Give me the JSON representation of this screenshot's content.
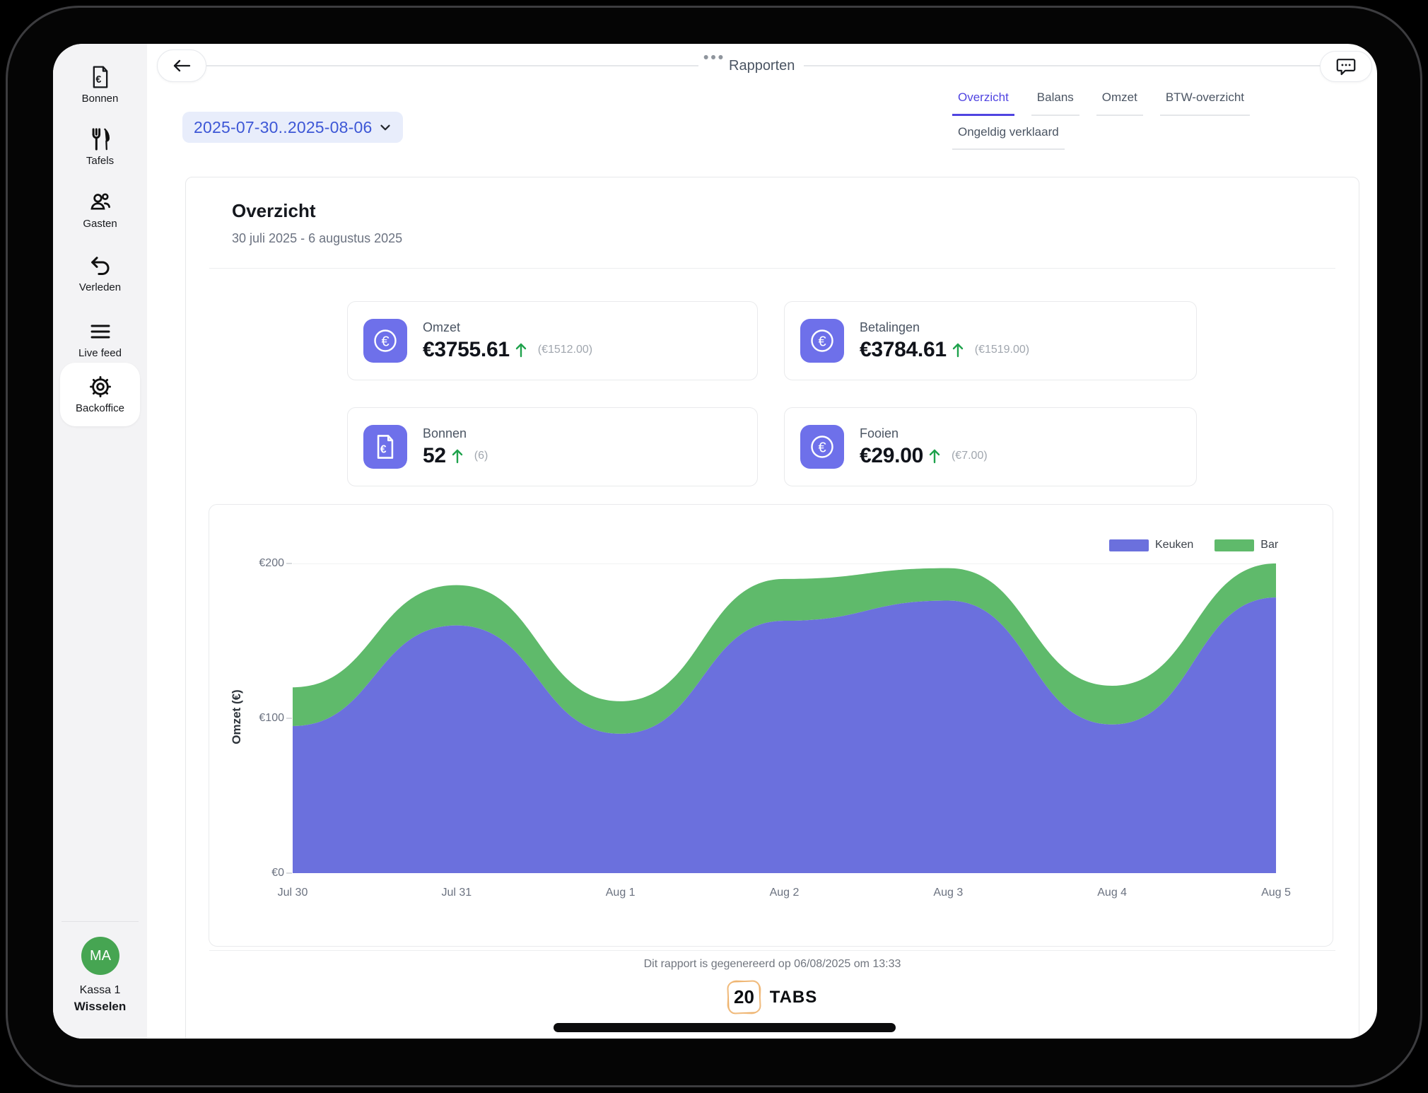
{
  "topbar": {
    "title": "Rapporten",
    "dots": "•••",
    "back_icon": "arrow-left-icon",
    "chat_icon": "chat-bubble-icon"
  },
  "sidebar": {
    "items": [
      {
        "label": "Bonnen",
        "icon": "receipt-euro-icon",
        "active": false
      },
      {
        "label": "Tafels",
        "icon": "cutlery-icon",
        "active": false
      },
      {
        "label": "Gasten",
        "icon": "guests-icon",
        "active": false
      },
      {
        "label": "Verleden",
        "icon": "undo-arrow-icon",
        "active": false
      },
      {
        "label": "Live feed",
        "icon": "list-lines-icon",
        "active": false
      },
      {
        "label": "Backoffice",
        "icon": "gear-icon",
        "active": true
      }
    ],
    "user": {
      "initials": "MA",
      "name": "Kassa 1",
      "action": "Wisselen",
      "avatar_color": "#46a552"
    }
  },
  "filters": {
    "date_range": "2025-07-30..2025-08-06",
    "chevron_icon": "chevron-down-icon"
  },
  "tabs": [
    {
      "label": "Overzicht",
      "active": true
    },
    {
      "label": "Balans",
      "active": false
    },
    {
      "label": "Omzet",
      "active": false
    },
    {
      "label": "BTW-overzicht",
      "active": false
    },
    {
      "label": "Ongeldig verklaard",
      "active": false
    }
  ],
  "report": {
    "title": "Overzicht",
    "subtitle": "30 juli 2025 - 6 augustus 2025",
    "stats": [
      {
        "label": "Omzet",
        "value": "€3755.61",
        "delta_dir": "up",
        "sub": "(€1512.00)",
        "icon": "euro-coin-icon"
      },
      {
        "label": "Betalingen",
        "value": "€3784.61",
        "delta_dir": "up",
        "sub": "(€1519.00)",
        "icon": "euro-coin-icon"
      },
      {
        "label": "Bonnen",
        "value": "52",
        "delta_dir": "up",
        "sub": "(6)",
        "icon": "receipt-euro-icon"
      },
      {
        "label": "Fooien",
        "value": "€29.00",
        "delta_dir": "up",
        "sub": "(€7.00)",
        "icon": "euro-coin-icon"
      }
    ],
    "footer": "Dit rapport is gegenereerd op 06/08/2025 om 13:33",
    "brand": {
      "number": "20",
      "name": "TABS",
      "box_color": "#edb068"
    }
  },
  "colors": {
    "accent_indigo": "#5044e1",
    "date_text": "#3d57d6",
    "stat_icon_bg": "#6e70ea",
    "keuken_purple": "#6b70dd",
    "bar_green": "#5fba6b",
    "arrow_green": "#1fa24c",
    "avatar_green": "#46a552"
  },
  "chart_data": {
    "type": "area",
    "stacked": true,
    "x": [
      "Jul 30",
      "Jul 31",
      "Aug 1",
      "Aug 2",
      "Aug 3",
      "Aug 4",
      "Aug 5"
    ],
    "series": [
      {
        "name": "Keuken",
        "color": "#6b70dd",
        "values": [
          95,
          160,
          90,
          163,
          176,
          96,
          178
        ]
      },
      {
        "name": "Bar",
        "color": "#5fba6b",
        "values": [
          25,
          26,
          21,
          27,
          21,
          25,
          22
        ]
      }
    ],
    "title": "",
    "xlabel": "",
    "ylabel": "Omzet (€)",
    "ylim": [
      0,
      200
    ],
    "yticks": [
      0,
      100,
      200
    ],
    "ytick_labels": [
      "€0",
      "€100",
      "€200"
    ],
    "grid": true,
    "legend_position": "top-right"
  }
}
